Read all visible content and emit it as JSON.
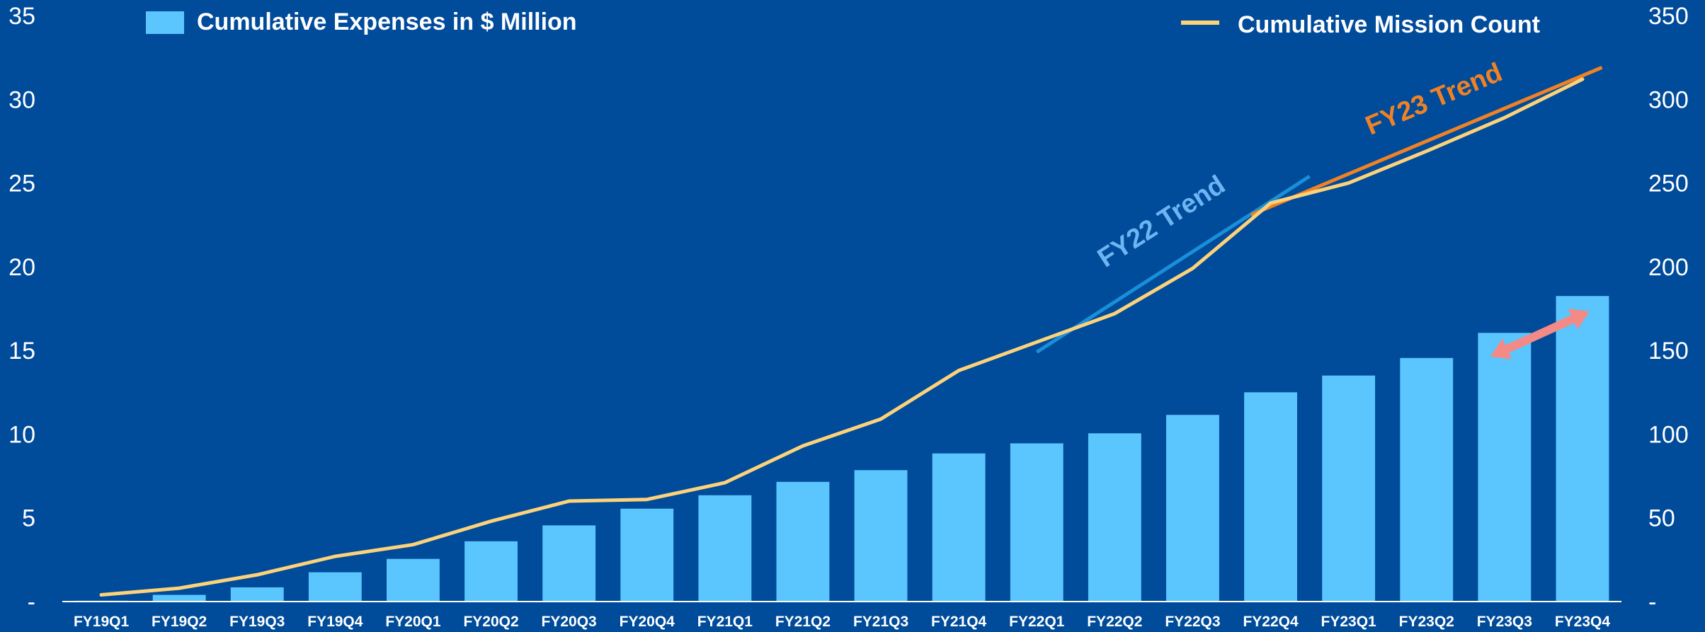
{
  "colors": {
    "background": "#004b9a",
    "bar": "#5bc5fd",
    "mission_line": "#fcd27a",
    "fy22_trend": "#1a8fd9",
    "fy22_label": "#6db4f3",
    "fy23_trend": "#f08125",
    "arrow": "#f48a86",
    "axis": "#ffffff"
  },
  "chart_data": {
    "type": "bar",
    "categories": [
      "FY19Q1",
      "FY19Q2",
      "FY19Q3",
      "FY19Q4",
      "FY20Q1",
      "FY20Q2",
      "FY20Q3",
      "FY20Q4",
      "FY21Q1",
      "FY21Q2",
      "FY21Q3",
      "FY21Q4",
      "FY22Q1",
      "FY22Q2",
      "FY22Q3",
      "FY22Q4",
      "FY23Q1",
      "FY23Q2",
      "FY23Q3",
      "FY23Q4"
    ],
    "series": [
      {
        "name": "Cumulative Expenses in $ Million",
        "type": "bar",
        "axis": "left",
        "values": [
          0.05,
          0.4,
          0.85,
          1.75,
          2.55,
          3.6,
          4.55,
          5.55,
          6.35,
          7.15,
          7.85,
          8.85,
          9.45,
          10.05,
          11.15,
          12.5,
          13.5,
          14.55,
          16.05,
          18.25
        ]
      },
      {
        "name": "Cumulative Mission Count",
        "type": "line",
        "axis": "right",
        "values": [
          4,
          8,
          16,
          27,
          34,
          48,
          60,
          61,
          71,
          93,
          109,
          138,
          155,
          172,
          199,
          238,
          250,
          269,
          289,
          312
        ]
      }
    ],
    "trends": [
      {
        "label": "FY22 Trend",
        "from": [
          "FY22Q1",
          149
        ],
        "to": [
          "FY22Q4+0.5",
          254
        ]
      },
      {
        "label": "FY23 Trend",
        "from": [
          "FY22Q4-0.25",
          231
        ],
        "to": [
          "FY23Q4+0.25",
          319
        ]
      }
    ],
    "arrow": {
      "from": [
        "FY23Q3",
        148
      ],
      "to": [
        "FY23Q4",
        175
      ],
      "double_headed": true
    },
    "y_left": {
      "ylim": [
        0,
        35
      ],
      "ticks": [
        "-",
        "5",
        "10",
        "15",
        "20",
        "25",
        "30",
        "35"
      ]
    },
    "y_right": {
      "ylim": [
        0,
        350
      ],
      "ticks": [
        "-",
        "50",
        "100",
        "150",
        "200",
        "250",
        "300",
        "350"
      ]
    },
    "grid": false,
    "legend": [
      "top-left",
      "top-right"
    ]
  }
}
